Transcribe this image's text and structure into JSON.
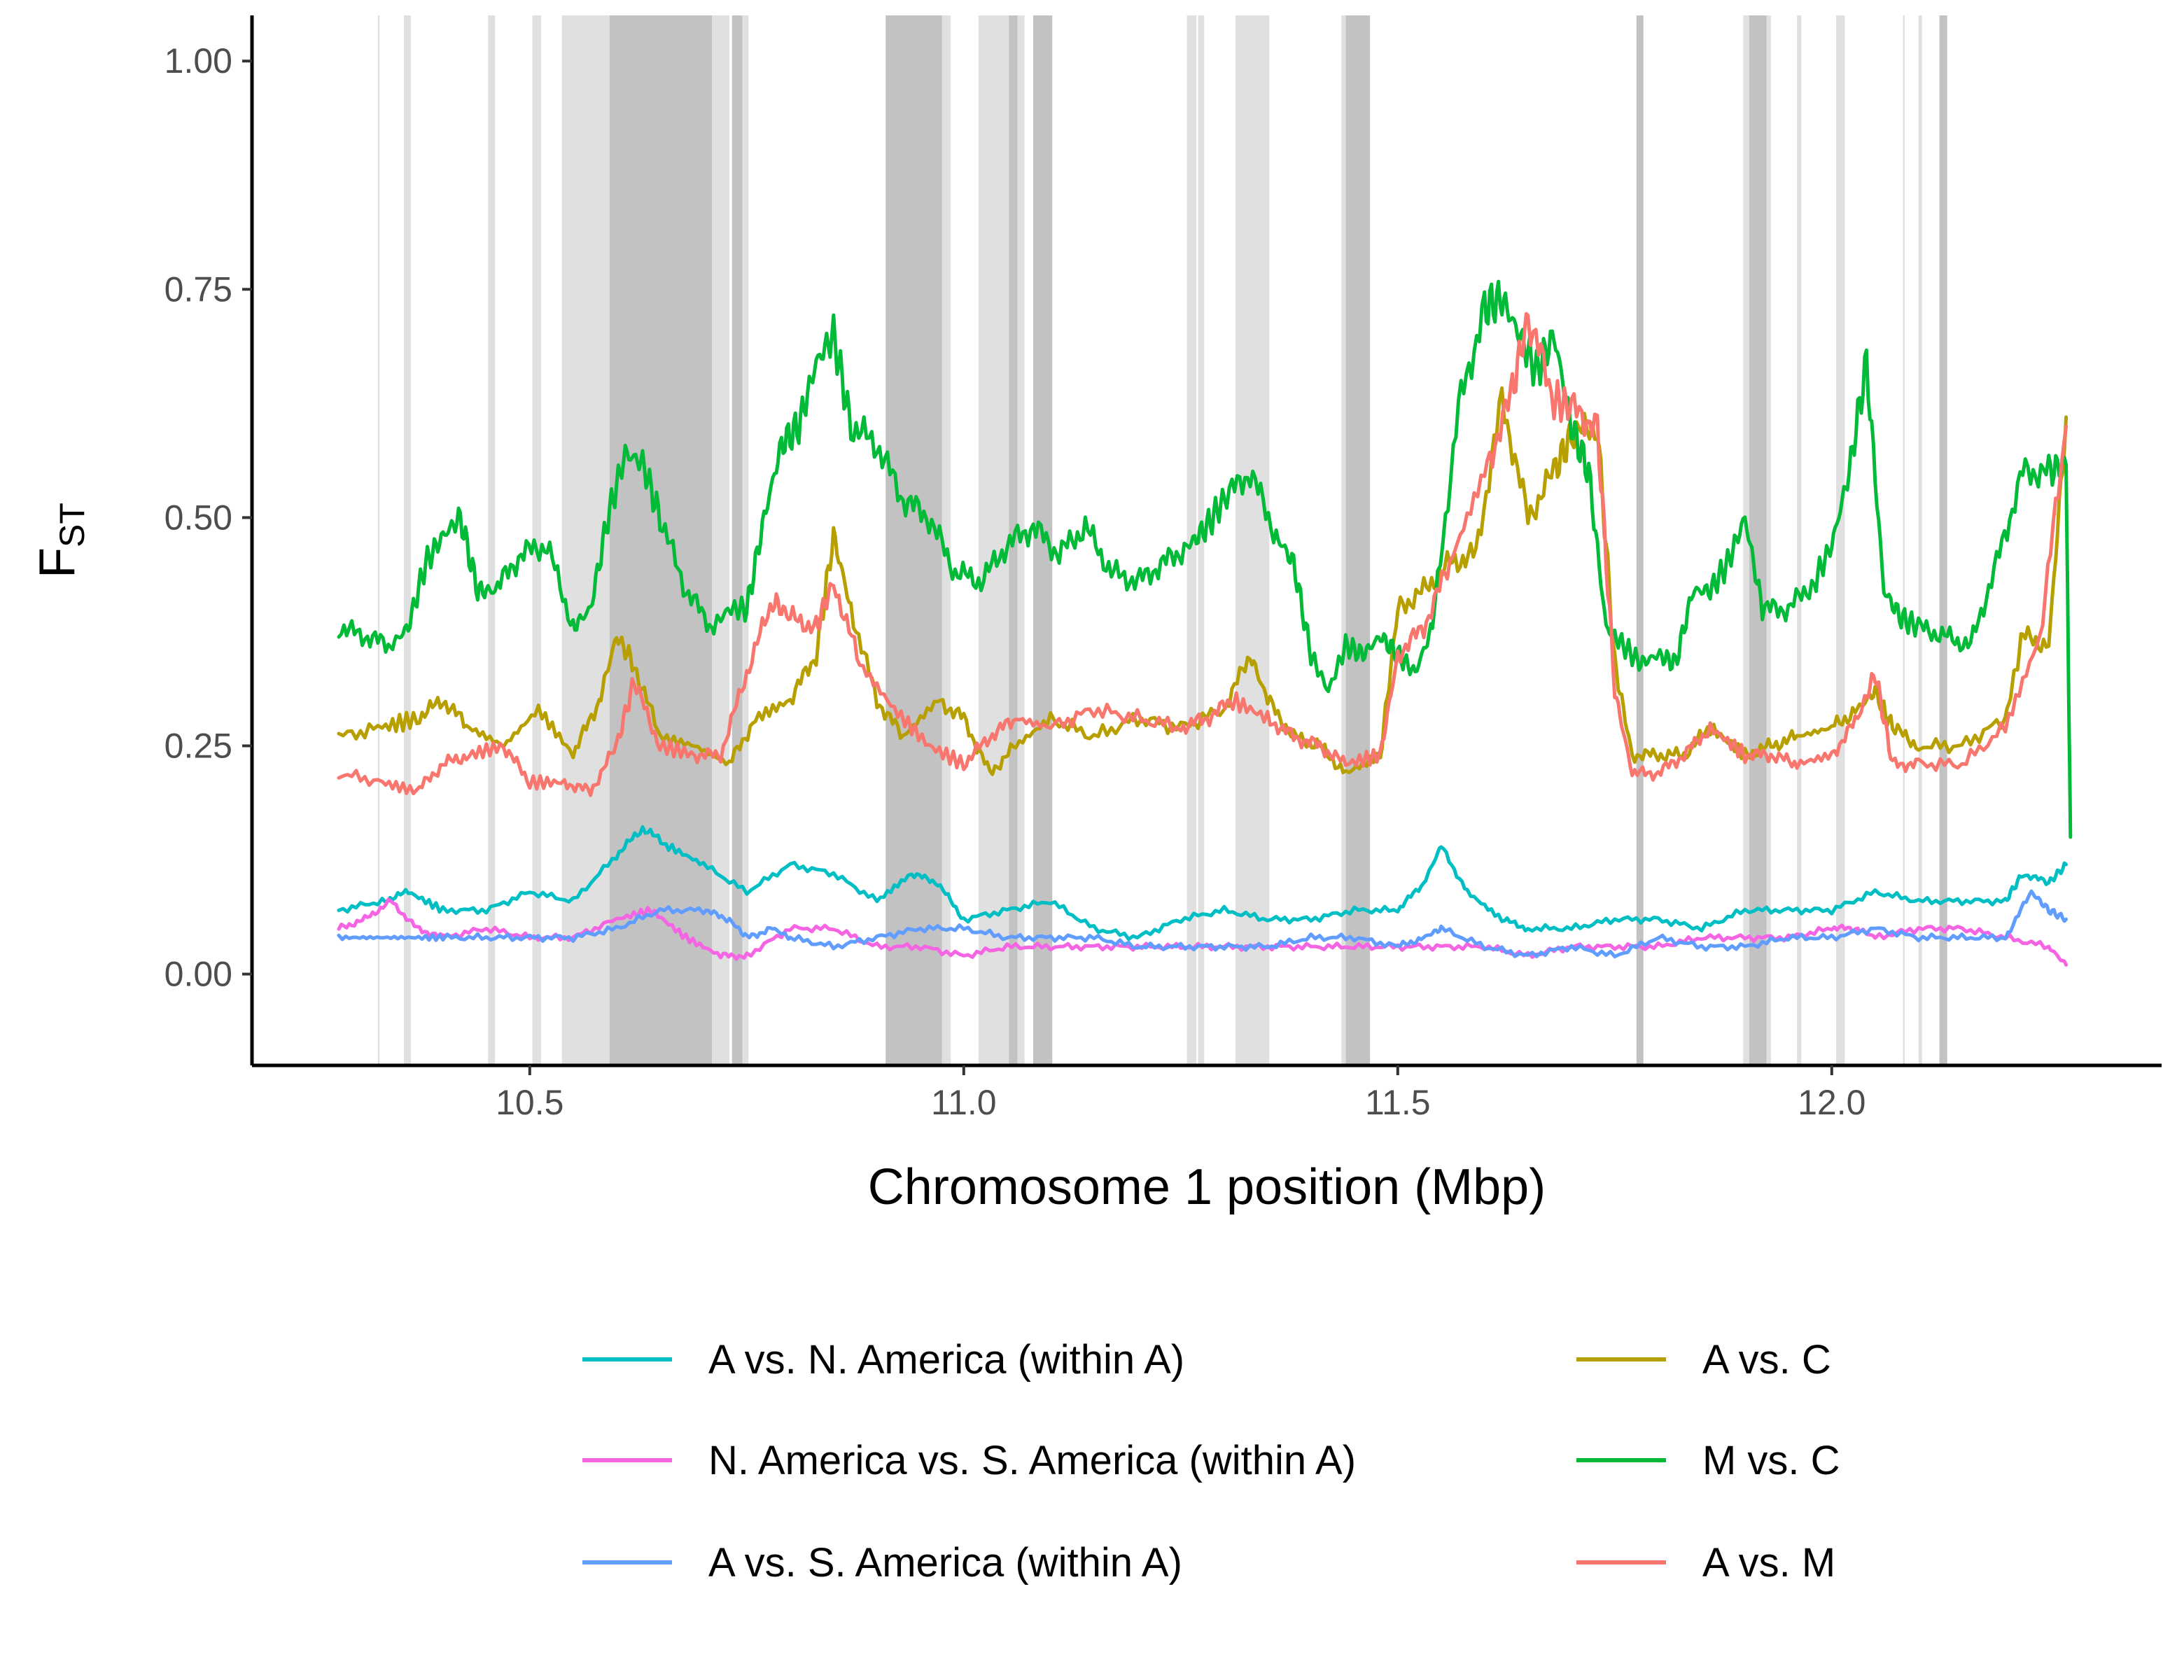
{
  "chart_data": {
    "type": "line",
    "xlabel": "Chromosome 1 position (Mbp)",
    "ylabel": {
      "main": "F",
      "sub": "ST"
    },
    "xlim": [
      10.18,
      12.38
    ],
    "ylim": [
      -0.1,
      1.05
    ],
    "xticks": [
      10.5,
      11.0,
      11.5,
      12.0
    ],
    "xtick_labels": [
      "10.5",
      "11.0",
      "11.5",
      "12.0"
    ],
    "yticks": [
      0.0,
      0.25,
      0.5,
      0.75,
      1.0
    ],
    "ytick_labels": [
      "0.00",
      "0.25",
      "0.50",
      "0.75",
      "1.00"
    ],
    "grid": false,
    "legend_position": "bottom",
    "shaded_regions": [
      {
        "x0": 10.325,
        "x1": 10.327,
        "shade": "light"
      },
      {
        "x0": 10.355,
        "x1": 10.363,
        "shade": "light"
      },
      {
        "x0": 10.452,
        "x1": 10.46,
        "shade": "light"
      },
      {
        "x0": 10.503,
        "x1": 10.513,
        "shade": "light"
      },
      {
        "x0": 10.537,
        "x1": 10.592,
        "shade": "light"
      },
      {
        "x0": 10.592,
        "x1": 10.71,
        "shade": "dark"
      },
      {
        "x0": 10.71,
        "x1": 10.73,
        "shade": "light"
      },
      {
        "x0": 10.733,
        "x1": 10.745,
        "shade": "dark"
      },
      {
        "x0": 10.745,
        "x1": 10.752,
        "shade": "light"
      },
      {
        "x0": 10.91,
        "x1": 10.975,
        "shade": "dark"
      },
      {
        "x0": 10.975,
        "x1": 10.985,
        "shade": "light"
      },
      {
        "x0": 11.017,
        "x1": 11.052,
        "shade": "light"
      },
      {
        "x0": 11.052,
        "x1": 11.062,
        "shade": "dark"
      },
      {
        "x0": 11.062,
        "x1": 11.07,
        "shade": "light"
      },
      {
        "x0": 11.08,
        "x1": 11.102,
        "shade": "dark"
      },
      {
        "x0": 11.257,
        "x1": 11.268,
        "shade": "light"
      },
      {
        "x0": 11.27,
        "x1": 11.277,
        "shade": "light"
      },
      {
        "x0": 11.313,
        "x1": 11.352,
        "shade": "light"
      },
      {
        "x0": 11.435,
        "x1": 11.44,
        "shade": "light"
      },
      {
        "x0": 11.44,
        "x1": 11.468,
        "shade": "dark"
      },
      {
        "x0": 11.775,
        "x1": 11.783,
        "shade": "dark"
      },
      {
        "x0": 11.898,
        "x1": 11.905,
        "shade": "light"
      },
      {
        "x0": 11.905,
        "x1": 11.925,
        "shade": "dark"
      },
      {
        "x0": 11.925,
        "x1": 11.93,
        "shade": "light"
      },
      {
        "x0": 11.96,
        "x1": 11.965,
        "shade": "light"
      },
      {
        "x0": 12.005,
        "x1": 12.015,
        "shade": "light"
      },
      {
        "x0": 12.082,
        "x1": 12.084,
        "shade": "light"
      },
      {
        "x0": 12.1,
        "x1": 12.104,
        "shade": "light"
      },
      {
        "x0": 12.124,
        "x1": 12.133,
        "shade": "dark"
      }
    ],
    "series": [
      {
        "name": "A vs. N. America (within A)",
        "color": "#00BFC4",
        "x": [
          10.28,
          10.33,
          10.36,
          10.4,
          10.45,
          10.5,
          10.55,
          10.6,
          10.63,
          10.66,
          10.7,
          10.75,
          10.8,
          10.85,
          10.9,
          10.94,
          10.97,
          11.0,
          11.05,
          11.1,
          11.15,
          11.2,
          11.25,
          11.3,
          11.35,
          11.4,
          11.45,
          11.5,
          11.53,
          11.55,
          11.58,
          11.62,
          11.65,
          11.7,
          11.75,
          11.8,
          11.85,
          11.9,
          11.95,
          12.0,
          12.05,
          12.1,
          12.15,
          12.2,
          12.22,
          12.25,
          12.27
        ],
        "y": [
          0.07,
          0.08,
          0.09,
          0.07,
          0.07,
          0.09,
          0.08,
          0.13,
          0.16,
          0.14,
          0.12,
          0.09,
          0.12,
          0.11,
          0.08,
          0.11,
          0.1,
          0.06,
          0.07,
          0.08,
          0.05,
          0.04,
          0.06,
          0.07,
          0.06,
          0.06,
          0.07,
          0.07,
          0.1,
          0.14,
          0.09,
          0.06,
          0.05,
          0.05,
          0.06,
          0.06,
          0.05,
          0.07,
          0.07,
          0.07,
          0.09,
          0.08,
          0.08,
          0.08,
          0.11,
          0.1,
          0.12
        ]
      },
      {
        "name": "N. America vs. S. America (within A)",
        "color": "#F564E3",
        "x": [
          10.28,
          10.31,
          10.34,
          10.37,
          10.4,
          10.45,
          10.5,
          10.55,
          10.6,
          10.64,
          10.68,
          10.72,
          10.75,
          10.8,
          10.85,
          10.9,
          10.95,
          11.0,
          11.05,
          11.1,
          11.15,
          11.2,
          11.25,
          11.3,
          11.35,
          11.4,
          11.45,
          11.5,
          11.55,
          11.6,
          11.65,
          11.7,
          11.75,
          11.8,
          11.85,
          11.9,
          11.95,
          12.0,
          12.03,
          12.05,
          12.1,
          12.15,
          12.2,
          12.25,
          12.27
        ],
        "y": [
          0.05,
          0.06,
          0.08,
          0.05,
          0.04,
          0.05,
          0.04,
          0.04,
          0.06,
          0.07,
          0.04,
          0.02,
          0.02,
          0.05,
          0.05,
          0.03,
          0.03,
          0.02,
          0.03,
          0.03,
          0.03,
          0.03,
          0.03,
          0.03,
          0.03,
          0.03,
          0.03,
          0.03,
          0.03,
          0.03,
          0.02,
          0.03,
          0.03,
          0.03,
          0.04,
          0.04,
          0.04,
          0.05,
          0.05,
          0.04,
          0.05,
          0.05,
          0.04,
          0.03,
          0.01
        ]
      },
      {
        "name": "A vs. S. America (within A)",
        "color": "#619CFF",
        "x": [
          10.28,
          10.32,
          10.36,
          10.4,
          10.45,
          10.5,
          10.55,
          10.6,
          10.65,
          10.7,
          10.73,
          10.75,
          10.78,
          10.8,
          10.85,
          10.9,
          10.95,
          11.0,
          11.05,
          11.1,
          11.15,
          11.2,
          11.25,
          11.3,
          11.35,
          11.4,
          11.45,
          11.5,
          11.53,
          11.55,
          11.6,
          11.65,
          11.7,
          11.75,
          11.8,
          11.85,
          11.9,
          11.95,
          12.0,
          12.05,
          12.1,
          12.15,
          12.2,
          12.23,
          12.25,
          12.27
        ],
        "y": [
          0.04,
          0.04,
          0.04,
          0.04,
          0.04,
          0.04,
          0.04,
          0.05,
          0.07,
          0.07,
          0.06,
          0.04,
          0.05,
          0.04,
          0.03,
          0.04,
          0.05,
          0.05,
          0.04,
          0.04,
          0.04,
          0.03,
          0.03,
          0.03,
          0.03,
          0.04,
          0.04,
          0.03,
          0.04,
          0.05,
          0.03,
          0.02,
          0.03,
          0.02,
          0.04,
          0.03,
          0.03,
          0.04,
          0.04,
          0.05,
          0.04,
          0.04,
          0.04,
          0.09,
          0.07,
          0.06
        ]
      },
      {
        "name": "A vs. C",
        "color": "#B79F00",
        "x": [
          10.28,
          10.33,
          10.37,
          10.4,
          10.43,
          10.47,
          10.51,
          10.55,
          10.58,
          10.6,
          10.62,
          10.65,
          10.69,
          10.73,
          10.76,
          10.8,
          10.83,
          10.85,
          10.87,
          10.9,
          10.93,
          10.97,
          11.0,
          11.03,
          11.06,
          11.1,
          11.15,
          11.2,
          11.25,
          11.3,
          11.33,
          11.35,
          11.38,
          11.41,
          11.44,
          11.48,
          11.5,
          11.53,
          11.56,
          11.59,
          11.62,
          11.65,
          11.68,
          11.7,
          11.73,
          11.75,
          11.77,
          11.8,
          11.83,
          11.86,
          11.9,
          11.93,
          11.96,
          12.0,
          12.03,
          12.05,
          12.07,
          12.1,
          12.15,
          12.2,
          12.22,
          12.25,
          12.27
        ],
        "y": [
          0.26,
          0.27,
          0.28,
          0.3,
          0.27,
          0.25,
          0.29,
          0.24,
          0.3,
          0.37,
          0.34,
          0.26,
          0.25,
          0.23,
          0.28,
          0.3,
          0.35,
          0.48,
          0.4,
          0.3,
          0.26,
          0.3,
          0.28,
          0.22,
          0.25,
          0.28,
          0.26,
          0.28,
          0.27,
          0.29,
          0.35,
          0.3,
          0.26,
          0.25,
          0.22,
          0.24,
          0.4,
          0.42,
          0.45,
          0.46,
          0.63,
          0.5,
          0.55,
          0.59,
          0.6,
          0.34,
          0.24,
          0.24,
          0.24,
          0.27,
          0.24,
          0.25,
          0.26,
          0.27,
          0.29,
          0.31,
          0.27,
          0.25,
          0.25,
          0.28,
          0.37,
          0.36,
          0.61
        ]
      },
      {
        "name": "M vs. C",
        "color": "#00BA38",
        "x": [
          10.28,
          10.31,
          10.34,
          10.36,
          10.38,
          10.4,
          10.42,
          10.44,
          10.46,
          10.49,
          10.52,
          10.55,
          10.57,
          10.59,
          10.61,
          10.63,
          10.65,
          10.68,
          10.71,
          10.73,
          10.75,
          10.77,
          10.79,
          10.81,
          10.83,
          10.85,
          10.87,
          10.9,
          10.93,
          10.96,
          10.99,
          11.02,
          11.05,
          11.08,
          11.11,
          11.14,
          11.17,
          11.2,
          11.23,
          11.26,
          11.28,
          11.3,
          11.33,
          11.36,
          11.38,
          11.4,
          11.42,
          11.44,
          11.46,
          11.48,
          11.5,
          11.52,
          11.54,
          11.57,
          11.6,
          11.62,
          11.64,
          11.66,
          11.68,
          11.7,
          11.72,
          11.74,
          11.76,
          11.78,
          11.8,
          11.82,
          11.84,
          11.86,
          11.88,
          11.9,
          11.92,
          11.95,
          11.98,
          12.0,
          12.02,
          12.04,
          12.06,
          12.08,
          12.1,
          12.13,
          12.16,
          12.19,
          12.22,
          12.25,
          12.27,
          12.275
        ],
        "y": [
          0.38,
          0.37,
          0.36,
          0.38,
          0.45,
          0.48,
          0.5,
          0.42,
          0.42,
          0.46,
          0.47,
          0.38,
          0.4,
          0.5,
          0.57,
          0.56,
          0.5,
          0.42,
          0.38,
          0.4,
          0.4,
          0.5,
          0.58,
          0.6,
          0.67,
          0.7,
          0.6,
          0.58,
          0.52,
          0.5,
          0.44,
          0.43,
          0.47,
          0.49,
          0.46,
          0.49,
          0.44,
          0.43,
          0.45,
          0.47,
          0.49,
          0.52,
          0.55,
          0.48,
          0.45,
          0.35,
          0.31,
          0.36,
          0.35,
          0.37,
          0.35,
          0.33,
          0.38,
          0.62,
          0.73,
          0.74,
          0.7,
          0.66,
          0.7,
          0.6,
          0.55,
          0.38,
          0.36,
          0.34,
          0.35,
          0.34,
          0.42,
          0.42,
          0.45,
          0.5,
          0.4,
          0.4,
          0.43,
          0.47,
          0.55,
          0.67,
          0.42,
          0.39,
          0.38,
          0.37,
          0.36,
          0.45,
          0.55,
          0.55,
          0.56,
          0.15
        ]
      },
      {
        "name": "A vs. M",
        "color": "#F8766D",
        "x": [
          10.28,
          10.33,
          10.37,
          10.4,
          10.43,
          10.47,
          10.5,
          10.54,
          10.57,
          10.6,
          10.62,
          10.65,
          10.69,
          10.72,
          10.75,
          10.78,
          10.8,
          10.83,
          10.85,
          10.88,
          10.92,
          10.96,
          11.0,
          11.03,
          11.06,
          11.1,
          11.15,
          11.2,
          11.25,
          11.28,
          11.31,
          11.35,
          11.38,
          11.41,
          11.44,
          11.48,
          11.5,
          11.53,
          11.56,
          11.6,
          11.63,
          11.65,
          11.68,
          11.7,
          11.73,
          11.75,
          11.77,
          11.8,
          11.83,
          11.86,
          11.9,
          11.93,
          11.96,
          12.0,
          12.03,
          12.05,
          12.07,
          12.1,
          12.15,
          12.2,
          12.24,
          12.27
        ],
        "y": [
          0.22,
          0.21,
          0.2,
          0.23,
          0.24,
          0.25,
          0.21,
          0.21,
          0.2,
          0.25,
          0.32,
          0.25,
          0.24,
          0.24,
          0.33,
          0.41,
          0.39,
          0.38,
          0.43,
          0.34,
          0.29,
          0.25,
          0.23,
          0.26,
          0.28,
          0.27,
          0.29,
          0.28,
          0.27,
          0.28,
          0.3,
          0.28,
          0.26,
          0.25,
          0.23,
          0.24,
          0.35,
          0.38,
          0.45,
          0.55,
          0.63,
          0.72,
          0.63,
          0.62,
          0.6,
          0.31,
          0.22,
          0.22,
          0.24,
          0.27,
          0.24,
          0.24,
          0.23,
          0.24,
          0.28,
          0.33,
          0.23,
          0.23,
          0.23,
          0.27,
          0.37,
          0.6
        ]
      }
    ]
  },
  "legend": {
    "columns": [
      [
        "A vs. N. America (within A)",
        "N. America vs. S. America (within A)",
        "A vs. S. America (within A)"
      ],
      [
        "A vs. C",
        "M vs. C",
        "A vs. M"
      ]
    ]
  }
}
